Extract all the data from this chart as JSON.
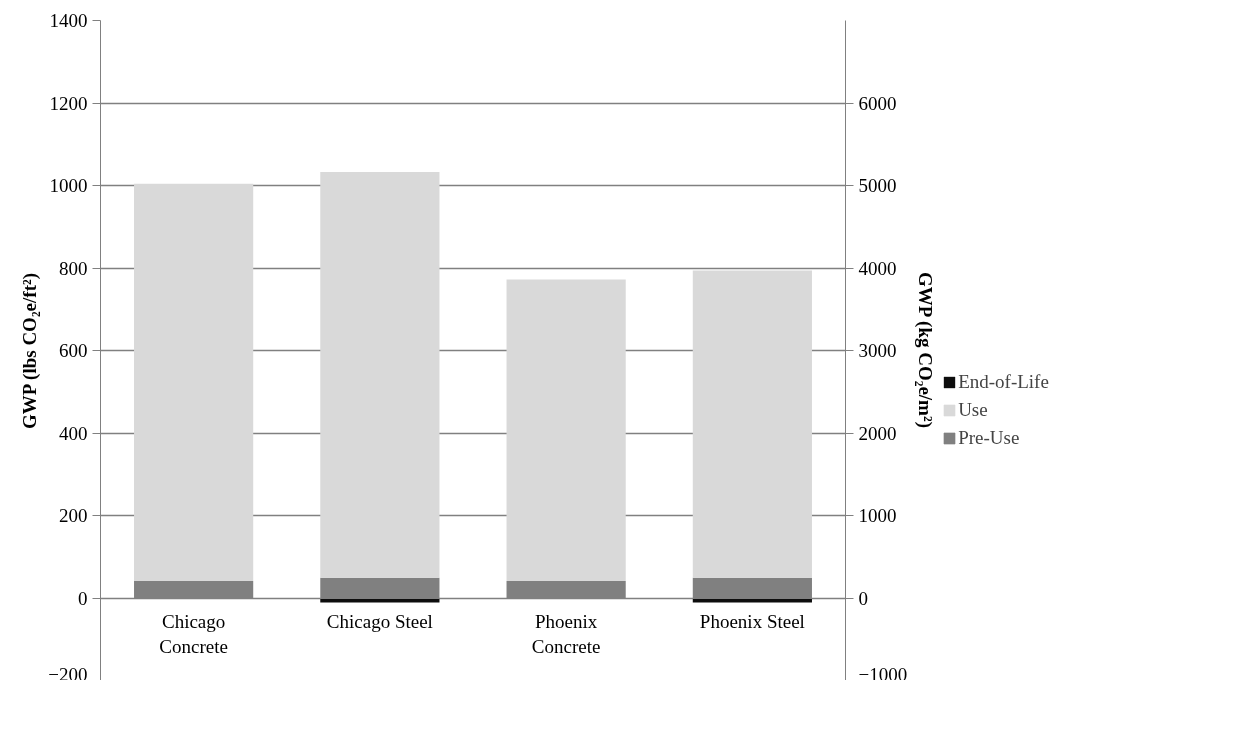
{
  "chart_data": {
    "type": "bar",
    "stacked": true,
    "categories": [
      "Chicago Concrete",
      "Chicago Steel",
      "Phoenix Concrete",
      "Phoenix Steel"
    ],
    "series": [
      {
        "name": "Pre-Use",
        "color": "#808080",
        "values": [
          41,
          49,
          41,
          49
        ]
      },
      {
        "name": "Use",
        "color": "#d9d9d9",
        "values": [
          963,
          984,
          731,
          745
        ]
      },
      {
        "name": "End-of-Life",
        "color": "#0d0d0d",
        "values": [
          0,
          -11,
          0,
          -11
        ]
      }
    ],
    "ylabel": "GWP (lbs CO₂e/ft²)",
    "y2label": "GWP (kg CO₂e/m²)",
    "ylim": [
      -200,
      1400
    ],
    "yticks": [
      -200,
      0,
      200,
      400,
      600,
      800,
      1000,
      1200,
      1400
    ],
    "y2lim": [
      -1000,
      7000
    ],
    "y2ticks": [
      -1000,
      0,
      1000,
      2000,
      3000,
      4000,
      5000,
      6000
    ],
    "grid": "y",
    "legend": "right"
  }
}
